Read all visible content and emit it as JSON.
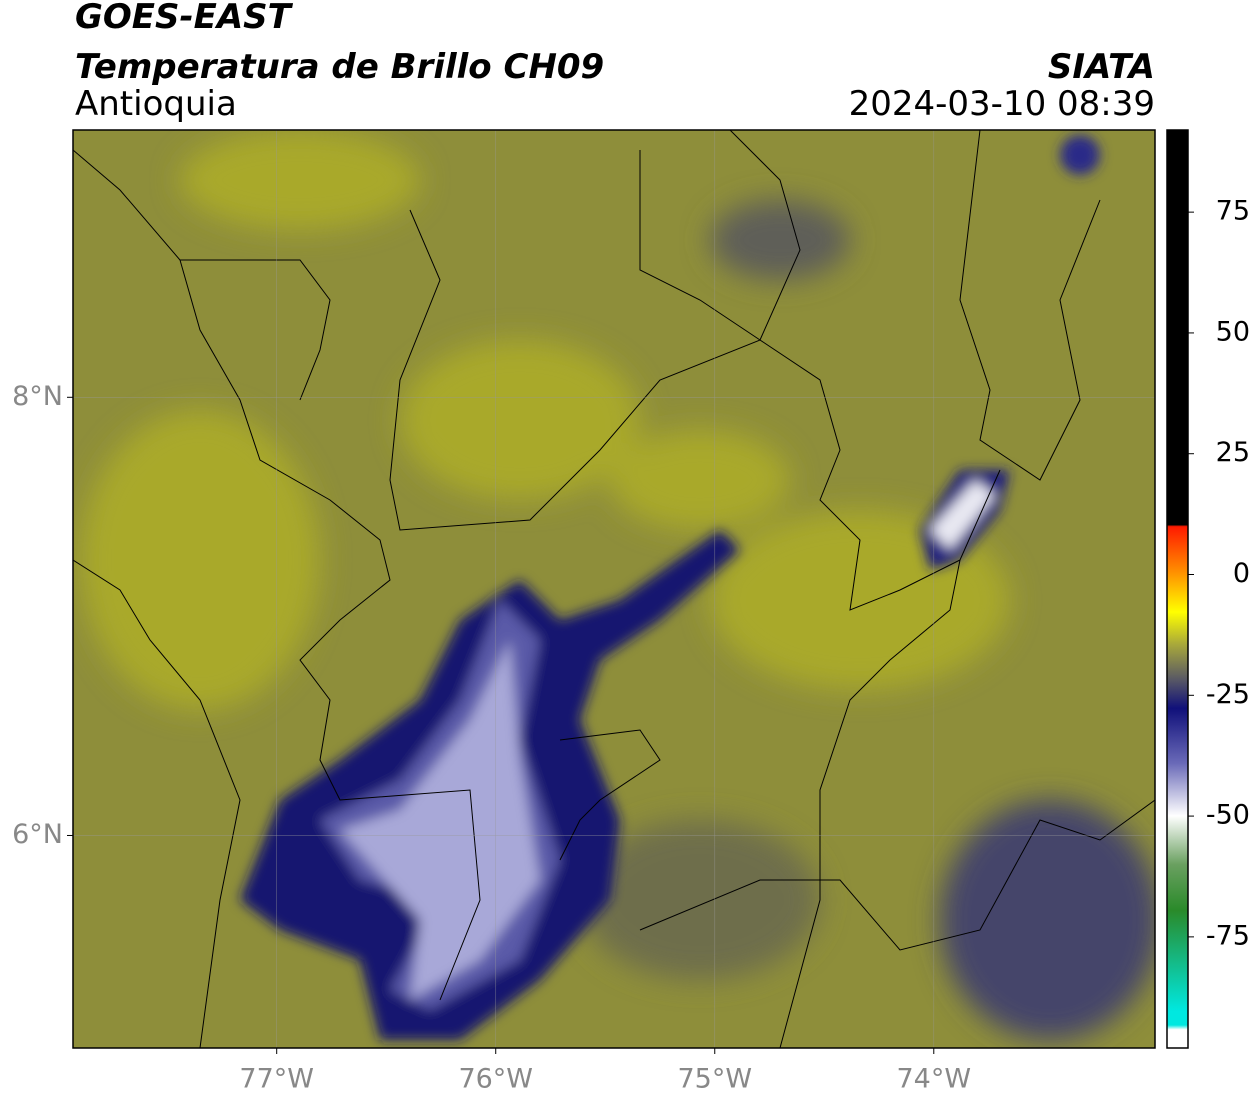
{
  "header": {
    "title": "GOES-EAST",
    "subtitle": "Temperatura de Brillo CH09",
    "region": "Antioquia",
    "source": "SIATA",
    "datetime": "2024-03-10 08:39"
  },
  "map": {
    "latlim": [
      5.03,
      9.22
    ],
    "lonlim": [
      -77.93,
      -72.99
    ],
    "lat_ticks": [
      {
        "value": 8,
        "label": "8°N"
      },
      {
        "value": 6,
        "label": "6°N"
      }
    ],
    "lon_ticks": [
      {
        "value": -77,
        "label": "77°W"
      },
      {
        "value": -76,
        "label": "76°W"
      },
      {
        "value": -75,
        "label": "75°W"
      },
      {
        "value": -74,
        "label": "74°W"
      }
    ]
  },
  "colorbar": {
    "lim": [
      -98,
      92
    ],
    "ticks": [
      75,
      50,
      25,
      0,
      -25,
      -50,
      -75
    ]
  }
}
